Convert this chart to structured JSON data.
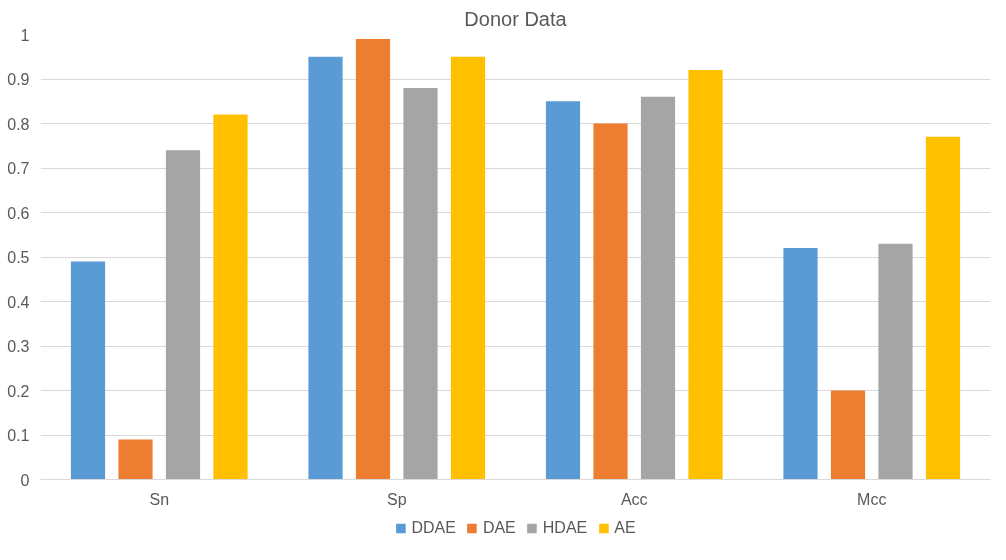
{
  "chart_data": {
    "type": "bar",
    "title": "Donor Data",
    "categories": [
      "Sn",
      "Sp",
      "Acc",
      "Mcc"
    ],
    "series": [
      {
        "name": "DDAE",
        "color": "#5b9bd5",
        "values": [
          0.49,
          0.95,
          0.85,
          0.52
        ]
      },
      {
        "name": "DAE",
        "color": "#ed7d31",
        "values": [
          0.09,
          0.99,
          0.8,
          0.2
        ]
      },
      {
        "name": "HDAE",
        "color": "#a5a5a5",
        "values": [
          0.74,
          0.88,
          0.86,
          0.53
        ]
      },
      {
        "name": "AE",
        "color": "#ffc000",
        "values": [
          0.82,
          0.95,
          0.92,
          0.77
        ]
      }
    ],
    "ylim": [
      0,
      1
    ],
    "yticks": [
      0,
      0.1,
      0.2,
      0.3,
      0.4,
      0.5,
      0.6,
      0.7,
      0.8,
      0.9,
      1
    ],
    "grid": "y",
    "legend": "bottom"
  }
}
